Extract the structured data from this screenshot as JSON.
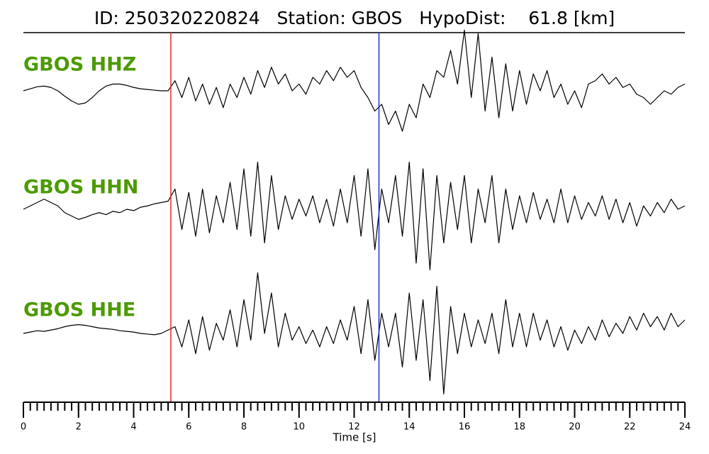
{
  "chart_data": {
    "type": "line",
    "title": "ID: 250320220824   Station: GBOS   HypoDist:    61.8 [km]",
    "xlabel": "Time [s]",
    "xlim": [
      0,
      24
    ],
    "xticks": [
      0,
      2,
      4,
      6,
      8,
      10,
      12,
      14,
      16,
      18,
      20,
      22,
      24
    ],
    "minor_xticks": [
      0,
      0.25,
      0.5,
      0.75,
      1,
      1.25,
      1.5,
      1.75,
      2,
      2.25,
      2.5,
      2.75,
      3,
      3.25,
      3.5,
      3.75,
      4,
      4.25,
      4.5,
      4.75,
      5,
      5.25,
      5.5,
      5.75,
      6,
      6.25,
      6.5,
      6.75,
      7,
      7.25,
      7.5,
      7.75,
      8,
      8.25,
      8.5,
      8.75,
      9,
      9.25,
      9.5,
      9.75,
      10,
      10.25,
      10.5,
      10.75,
      11,
      11.25,
      11.5,
      11.75,
      12,
      12.25,
      12.5,
      12.75,
      13,
      13.25,
      13.5,
      13.75,
      14,
      14.25,
      14.5,
      14.75,
      15,
      15.25,
      15.5,
      15.75,
      16,
      16.25,
      16.5,
      16.75,
      17,
      17.25,
      17.5,
      17.75,
      18,
      18.25,
      18.5,
      18.75,
      19,
      19.25,
      19.5,
      19.75,
      20,
      20.25,
      20.5,
      20.75,
      21,
      21.25,
      21.5,
      21.75,
      22,
      22.25,
      22.5,
      22.75,
      23,
      23.25,
      23.5,
      23.75,
      24
    ],
    "ylim": [
      -1,
      1
    ],
    "x": [
      0,
      0.25,
      0.5,
      0.75,
      1,
      1.25,
      1.5,
      1.75,
      2,
      2.25,
      2.5,
      2.75,
      3,
      3.25,
      3.5,
      3.75,
      4,
      4.25,
      4.5,
      4.75,
      5,
      5.25,
      5.5,
      5.75,
      6,
      6.25,
      6.5,
      6.75,
      7,
      7.25,
      7.5,
      7.75,
      8,
      8.25,
      8.5,
      8.75,
      9,
      9.25,
      9.5,
      9.75,
      10,
      10.25,
      10.5,
      10.75,
      11,
      11.25,
      11.5,
      11.75,
      12,
      12.25,
      12.5,
      12.75,
      13,
      13.25,
      13.5,
      13.75,
      14,
      14.25,
      14.5,
      14.75,
      15,
      15.25,
      15.5,
      15.75,
      16,
      16.25,
      16.5,
      16.75,
      17,
      17.25,
      17.5,
      17.75,
      18,
      18.25,
      18.5,
      18.75,
      19,
      19.25,
      19.5,
      19.75,
      20,
      20.25,
      20.5,
      20.75,
      21,
      21.25,
      21.5,
      21.75,
      22,
      22.25,
      22.5,
      22.75,
      23,
      23.25,
      23.5,
      23.75,
      24
    ],
    "label_color": "#4c9a00",
    "series": [
      {
        "name": "GBOS HHZ",
        "color": "#000000",
        "values": [
          0,
          0.03,
          0.06,
          0.07,
          0.05,
          0,
          -0.08,
          -0.15,
          -0.2,
          -0.18,
          -0.1,
          0,
          0.07,
          0.1,
          0.1,
          0.08,
          0.05,
          0.03,
          0.02,
          0.01,
          0,
          0,
          0.15,
          -0.1,
          0.2,
          -0.15,
          0.1,
          -0.2,
          0.05,
          -0.25,
          0.1,
          -0.1,
          0.2,
          -0.05,
          0.3,
          0.05,
          0.35,
          0.1,
          0.25,
          0,
          0.1,
          -0.05,
          0.2,
          0.1,
          0.3,
          0.15,
          0.35,
          0.2,
          0.3,
          0.05,
          -0.1,
          -0.3,
          -0.2,
          -0.5,
          -0.3,
          -0.6,
          -0.2,
          -0.4,
          0.1,
          -0.1,
          0.3,
          0.2,
          0.6,
          0.1,
          0.9,
          -0.1,
          0.85,
          -0.3,
          0.5,
          -0.4,
          0.4,
          -0.3,
          0.3,
          -0.2,
          0.25,
          0,
          0.3,
          -0.1,
          0.1,
          -0.2,
          0,
          -0.25,
          0.1,
          0.15,
          0.25,
          0.1,
          0.2,
          0.05,
          0.1,
          -0.05,
          -0.1,
          -0.2,
          -0.1,
          0,
          -0.05,
          0.05,
          0.1
        ]
      },
      {
        "name": "GBOS HHN",
        "color": "#000000",
        "values": [
          0,
          0.05,
          0.1,
          0.15,
          0.1,
          0.05,
          -0.05,
          -0.1,
          -0.15,
          -0.12,
          -0.08,
          -0.05,
          -0.08,
          -0.03,
          -0.05,
          0,
          -0.02,
          0.03,
          0.05,
          0.08,
          0.1,
          0.12,
          0.3,
          -0.3,
          0.25,
          -0.4,
          0.3,
          -0.35,
          0.2,
          -0.2,
          0.4,
          -0.3,
          0.6,
          -0.4,
          0.7,
          -0.5,
          0.5,
          -0.3,
          0.2,
          -0.15,
          0.15,
          -0.1,
          0.2,
          -0.2,
          0.15,
          -0.25,
          0.3,
          -0.2,
          0.5,
          -0.4,
          0.6,
          -0.6,
          0.3,
          -0.2,
          0.5,
          -0.4,
          0.7,
          -0.8,
          0.6,
          -0.9,
          0.5,
          -0.5,
          0.4,
          -0.3,
          0.5,
          -0.5,
          0.3,
          -0.2,
          0.5,
          -0.5,
          0.3,
          -0.3,
          0.2,
          -0.2,
          0.25,
          -0.15,
          0.15,
          -0.2,
          0.3,
          -0.2,
          0.2,
          -0.15,
          0.1,
          -0.1,
          0.2,
          -0.15,
          0.15,
          -0.2,
          0.1,
          -0.25,
          0.05,
          -0.1,
          0.1,
          -0.05,
          0.15,
          0,
          0.05
        ]
      },
      {
        "name": "GBOS HHE",
        "color": "#000000",
        "values": [
          0,
          0.02,
          0.04,
          0.03,
          0.05,
          0.07,
          0.1,
          0.12,
          0.13,
          0.12,
          0.1,
          0.08,
          0.07,
          0.06,
          0.04,
          0.03,
          0.02,
          0,
          -0.01,
          -0.02,
          0,
          0.05,
          0.1,
          -0.2,
          0.2,
          -0.3,
          0.25,
          -0.25,
          0.15,
          -0.1,
          0.35,
          -0.2,
          0.5,
          -0.1,
          0.9,
          0,
          0.6,
          -0.2,
          0.3,
          -0.1,
          0.1,
          -0.15,
          0.05,
          -0.2,
          0.1,
          -0.15,
          0.2,
          -0.1,
          0.4,
          -0.3,
          0.5,
          -0.4,
          0.3,
          -0.2,
          0.3,
          -0.5,
          0.6,
          -0.4,
          0.5,
          -0.7,
          0.7,
          -0.9,
          0.4,
          -0.3,
          0.3,
          -0.2,
          0.2,
          -0.15,
          0.3,
          -0.3,
          0.5,
          -0.2,
          0.3,
          -0.2,
          0.3,
          -0.1,
          0.2,
          -0.2,
          0.1,
          -0.25,
          0.05,
          -0.15,
          0.1,
          -0.1,
          0.2,
          -0.05,
          0.15,
          0,
          0.25,
          0.05,
          0.3,
          0.1,
          0.25,
          0.05,
          0.3,
          0.1,
          0.2
        ]
      }
    ],
    "markers": [
      {
        "x": 5.35,
        "color": "#e8262a"
      },
      {
        "x": 12.9,
        "color": "#1f2bd0"
      }
    ]
  }
}
